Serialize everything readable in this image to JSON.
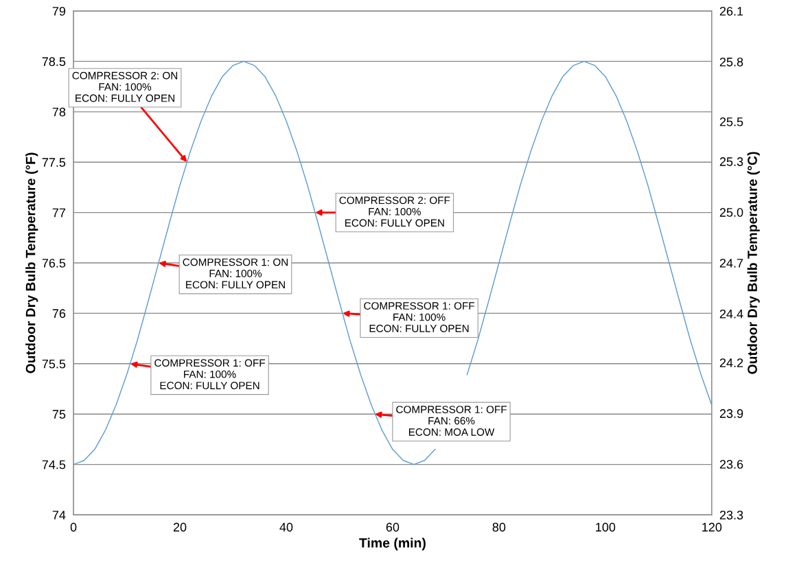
{
  "chart_data": {
    "type": "line",
    "xlabel": "Time (min)",
    "ylabel": "Outdoor Dry Bulb Temperature (°F)",
    "y2label": "Outdoor Dry Bulb Temperature (°C)",
    "x": [
      0,
      2,
      4,
      6,
      8,
      10,
      12,
      14,
      16,
      18,
      20,
      22,
      24,
      26,
      28,
      30,
      32,
      34,
      36,
      38,
      40,
      42,
      44,
      46,
      48,
      50,
      52,
      54,
      56,
      58,
      60,
      62,
      64,
      66,
      68,
      70,
      72,
      74,
      76,
      78,
      80,
      82,
      84,
      86,
      88,
      90,
      92,
      94,
      96,
      98,
      100,
      102,
      104,
      106,
      108,
      110,
      112,
      114,
      116,
      118,
      120
    ],
    "series": [
      {
        "color": "#5b9bd5",
        "values": [
          74.5,
          74.54,
          74.65,
          74.84,
          75.09,
          75.39,
          75.73,
          76.11,
          76.5,
          76.89,
          77.27,
          77.61,
          77.91,
          78.16,
          78.35,
          78.46,
          78.5,
          78.46,
          78.35,
          78.16,
          77.91,
          77.61,
          77.27,
          76.89,
          76.5,
          76.11,
          75.73,
          75.39,
          75.09,
          74.84,
          74.65,
          74.54,
          74.5,
          74.54,
          74.65,
          null,
          null,
          75.39,
          75.73,
          76.11,
          76.5,
          76.89,
          77.27,
          77.61,
          77.91,
          78.16,
          78.35,
          78.46,
          78.5,
          78.46,
          78.35,
          78.16,
          77.91,
          77.61,
          77.27,
          76.89,
          76.5,
          76.11,
          75.73,
          75.39,
          75.09
        ]
      }
    ],
    "xlim": [
      0,
      120
    ],
    "xticks": [
      0,
      20,
      40,
      60,
      80,
      100,
      120
    ],
    "ylim": [
      74,
      79
    ],
    "yticks": [
      74,
      74.5,
      75,
      75.5,
      76,
      76.5,
      77,
      77.5,
      78,
      78.5,
      79
    ],
    "y2lim": [
      23.33,
      26.11
    ],
    "y2ticks": [
      {
        "value": 23.33,
        "label": "23.3"
      },
      {
        "value": 23.61,
        "label": "23.6"
      },
      {
        "value": 23.89,
        "label": "23.9"
      },
      {
        "value": 24.17,
        "label": "24.2"
      },
      {
        "value": 24.44,
        "label": "24.4"
      },
      {
        "value": 24.72,
        "label": "24.7"
      },
      {
        "value": 25.0,
        "label": "25.0"
      },
      {
        "value": 25.28,
        "label": "25.3"
      },
      25.5,
      {
        "value": 25.83,
        "label": "25.8"
      },
      {
        "value": 26.11,
        "label": "26.1"
      }
    ],
    "grid": "y",
    "marker": "none",
    "line_style": "solid",
    "annotations": [
      {
        "text": "COMPRESSOR 2: ON\nFAN: 100%\nECON: FULLY OPEN",
        "x": 21.33,
        "y": 77.5
      },
      {
        "text": "COMPRESSOR 2: OFF\nFAN: 100%\nECON: FULLY OPEN",
        "x": 45.43,
        "y": 77
      },
      {
        "text": "COMPRESSOR 1: ON\nFAN: 100%\nECON: FULLY OPEN",
        "x": 16,
        "y": 76.5
      },
      {
        "text": "COMPRESSOR 1: OFF\nFAN: 100%\nECON: FULLY OPEN",
        "x": 50.58,
        "y": 76
      },
      {
        "text": "COMPRESSOR 1: OFF\nFAN: 100%\nECON: FULLY OPEN",
        "x": 10.67,
        "y": 75.5
      },
      {
        "text": "COMPRESSOR 1: OFF\nFAN: 66%\nECON: MOA LOW",
        "x": 56.64,
        "y": 75
      }
    ]
  }
}
